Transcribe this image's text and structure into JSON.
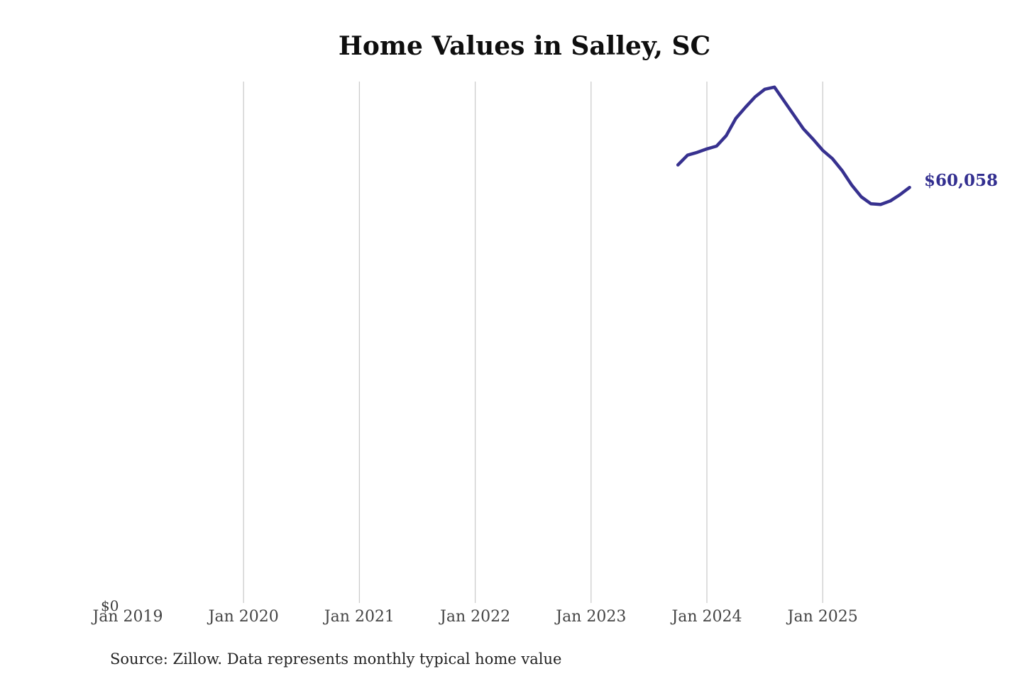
{
  "chart_data": {
    "type": "line",
    "title": "Home Values in Salley, SC",
    "series": [
      {
        "name": "Monthly typical home value",
        "color": "#37318f",
        "x": [
          "Oct 2023",
          "Nov 2023",
          "Dec 2023",
          "Jan 2024",
          "Feb 2024",
          "Mar 2024",
          "Apr 2024",
          "May 2024",
          "Jun 2024",
          "Jul 2024",
          "Aug 2024",
          "Sep 2024",
          "Oct 2024",
          "Nov 2024",
          "Dec 2024",
          "Jan 2025",
          "Feb 2025",
          "Mar 2025",
          "Apr 2025",
          "May 2025",
          "Jun 2025",
          "Jul 2025",
          "Aug 2025",
          "Sep 2025",
          "Oct 2025"
        ],
        "values": [
          63300,
          64700,
          65100,
          65600,
          66000,
          67500,
          70000,
          71600,
          73100,
          74200,
          74500,
          72500,
          70500,
          68500,
          67000,
          65400,
          64200,
          62500,
          60400,
          58700,
          57700,
          57600,
          58100,
          59000,
          60058
        ]
      }
    ],
    "end_label": "$60,058",
    "end_label_color": "#332f90",
    "x_axis": {
      "ticks": [
        {
          "label": "Jan 2019",
          "gridline": false
        },
        {
          "label": "Jan 2020",
          "gridline": true
        },
        {
          "label": "Jan 2021",
          "gridline": true
        },
        {
          "label": "Jan 2022",
          "gridline": true
        },
        {
          "label": "Jan 2023",
          "gridline": true
        },
        {
          "label": "Jan 2024",
          "gridline": true
        },
        {
          "label": "Jan 2025",
          "gridline": true
        }
      ],
      "tick_color": "#444444",
      "gridline_color": "#cccccc"
    },
    "y_axis": {
      "zero_label": "$0",
      "ylim": [
        0,
        75300
      ],
      "gridlines": false
    }
  },
  "source_note": "Source: Zillow. Data represents monthly typical home value"
}
